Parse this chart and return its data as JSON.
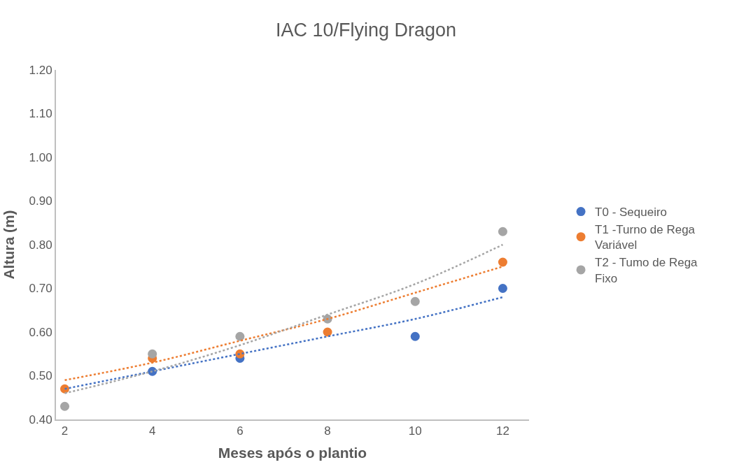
{
  "chart_data": {
    "type": "scatter",
    "title": "IAC 10/Flying Dragon",
    "xlabel": "Meses após o plantio",
    "ylabel": "Altura (m)",
    "x": [
      2,
      4,
      6,
      8,
      10,
      12
    ],
    "series": [
      {
        "name": "T0 - Sequeiro",
        "color": "#4472c4",
        "values": [
          null,
          0.51,
          0.54,
          null,
          0.59,
          0.7
        ]
      },
      {
        "name": "T1 -Turno de Rega\nVariável",
        "color": "#ed7d31",
        "values": [
          0.47,
          0.54,
          0.55,
          0.6,
          null,
          0.76
        ]
      },
      {
        "name": "T2 - Tumo de Rega\nFixo",
        "color": "#a5a5a5",
        "values": [
          0.43,
          0.55,
          0.59,
          0.63,
          0.67,
          0.83
        ]
      },
      {
        "type": "line",
        "color": "#4472c4",
        "line_style": "dotted",
        "marker": "none",
        "values": [
          0.47,
          0.51,
          0.55,
          0.59,
          0.63,
          0.68
        ]
      },
      {
        "type": "line",
        "color": "#ed7d31",
        "line_style": "dotted",
        "marker": "none",
        "values": [
          0.49,
          0.53,
          0.58,
          0.63,
          0.69,
          0.75
        ]
      },
      {
        "type": "line",
        "color": "#a5a5a5",
        "line_style": "dotted",
        "marker": "none",
        "values": [
          0.46,
          0.51,
          0.57,
          0.64,
          0.71,
          0.8
        ]
      }
    ],
    "xlim": [
      1.8,
      12.6
    ],
    "xticks": [
      2,
      4,
      6,
      8,
      10,
      12
    ],
    "ylim": [
      0.4,
      1.2
    ],
    "yticks": [
      {
        "value": 0.4,
        "label": "0.40"
      },
      {
        "value": 0.5,
        "label": "0.50"
      },
      {
        "value": 0.6,
        "label": "0.60"
      },
      {
        "value": 0.7,
        "label": "0.70"
      },
      {
        "value": 0.8,
        "label": "0.80"
      },
      {
        "value": 0.9,
        "label": "0.90"
      },
      {
        "value": 1.0,
        "label": "1.00"
      },
      {
        "value": 1.1,
        "label": "1.10"
      },
      {
        "value": 1.2,
        "label": "1.20"
      }
    ],
    "marker": "circle",
    "legend": "right"
  }
}
